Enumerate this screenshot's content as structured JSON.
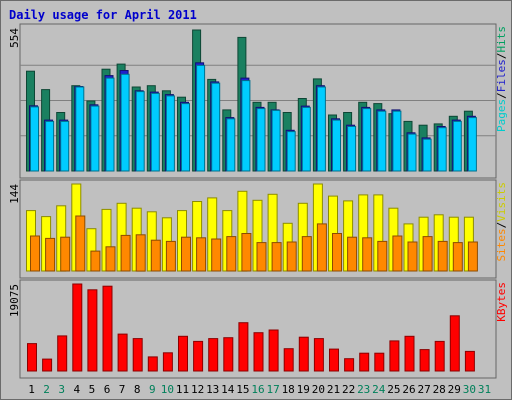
{
  "chart_data": {
    "title": "Daily usage for April 2011",
    "type": "bar",
    "days": [
      "1",
      "2",
      "3",
      "4",
      "5",
      "6",
      "7",
      "8",
      "9",
      "10",
      "11",
      "12",
      "13",
      "14",
      "15",
      "16",
      "17",
      "18",
      "19",
      "20",
      "21",
      "22",
      "23",
      "24",
      "25",
      "26",
      "27",
      "28",
      "29",
      "30",
      "31"
    ],
    "weekend_days": [
      "2",
      "3",
      "9",
      "10",
      "16",
      "17",
      "23",
      "24",
      "30",
      "31"
    ],
    "panels": [
      {
        "name": "hits-files-pages",
        "ymax_label": "554",
        "ymax": 554,
        "legend": [
          "Pages",
          "Files",
          "Hits"
        ],
        "series": [
          {
            "name": "Hits",
            "color": "#1a8060",
            "values": [
              392,
              320,
              230,
              335,
              275,
              400,
              420,
              330,
              335,
              315,
              290,
              554,
              360,
              240,
              525,
              270,
              270,
              230,
              285,
              362,
              220,
              230,
              270,
              265,
              225,
              195,
              180,
              185,
              215,
              235,
              0
            ]
          },
          {
            "name": "Files",
            "color": "#2020cc",
            "values": [
              256,
              200,
              200,
              332,
              260,
              375,
              395,
              315,
              310,
              300,
              270,
              425,
              350,
              210,
              365,
              250,
              240,
              160,
              255,
              335,
              205,
              180,
              250,
              240,
              240,
              150,
              130,
              175,
              200,
              215,
              0
            ]
          },
          {
            "name": "Pages",
            "color": "#00ccff",
            "values": [
              252,
              195,
              195,
              330,
              255,
              365,
              380,
              312,
              305,
              295,
              265,
              415,
              345,
              205,
              355,
              245,
              238,
              155,
              250,
              330,
              200,
              175,
              245,
              235,
              235,
              145,
              125,
              170,
              195,
              210,
              0
            ]
          }
        ]
      },
      {
        "name": "visits-sites",
        "ymax_label": "144",
        "ymax": 144,
        "legend": [
          "Sites",
          "Visits"
        ],
        "series": [
          {
            "name": "Visits",
            "color": "#ffff00",
            "values": [
              100,
              90,
              108,
              144,
              70,
              102,
              112,
              104,
              98,
              88,
              100,
              115,
              121,
              100,
              132,
              117,
              127,
              79,
              112,
              144,
              124,
              116,
              126,
              126,
              104,
              78,
              89,
              93,
              89,
              89,
              0
            ]
          },
          {
            "name": "Sites",
            "color": "#ff8800",
            "values": [
              58,
              54,
              56,
              91,
              33,
              40,
              59,
              60,
              51,
              49,
              56,
              55,
              53,
              57,
              62,
              47,
              47,
              48,
              57,
              78,
              62,
              56,
              55,
              49,
              58,
              48,
              57,
              49,
              47,
              48,
              0
            ]
          }
        ]
      },
      {
        "name": "kbytes",
        "ymax_label": "19075",
        "ymax": 19075,
        "legend": [
          "KBytes"
        ],
        "series": [
          {
            "name": "KBytes",
            "color": "#ff0000",
            "values": [
              6000,
              2600,
              7700,
              19075,
              17800,
              18600,
              8100,
              7100,
              3100,
              4000,
              7600,
              6500,
              7100,
              7300,
              10600,
              8400,
              9000,
              4900,
              7400,
              7100,
              4800,
              2700,
              3900,
              3900,
              6600,
              7600,
              4700,
              6500,
              12100,
              4300,
              0
            ]
          }
        ]
      }
    ]
  }
}
